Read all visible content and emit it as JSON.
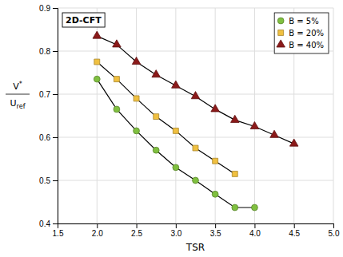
{
  "chart_data": {
    "type": "line",
    "annotations": [
      "2D-CFT"
    ],
    "xlabel": "TSR",
    "ylabel": [
      "V*",
      "Uref"
    ],
    "xlim": [
      1.5,
      5.0
    ],
    "ylim": [
      0.4,
      0.9
    ],
    "xticks": [
      1.5,
      {
        "value": 2.0,
        "label": "2.0"
      },
      2.5,
      {
        "value": 3.0,
        "label": "3.0"
      },
      3.5,
      {
        "value": 4.0,
        "label": "4.0"
      },
      4.5,
      {
        "value": 5.0,
        "label": "5.0"
      }
    ],
    "yticks": [
      0.4,
      0.5,
      0.6,
      0.7,
      0.8,
      0.9
    ],
    "grid": true,
    "legend": "upper right",
    "series": [
      {
        "name": "B = 5%",
        "color": "#80c040",
        "marker": "circle",
        "x": [
          2.0,
          2.25,
          2.5,
          2.75,
          3.0,
          3.25,
          3.5,
          3.75,
          4.0
        ],
        "values": [
          0.735,
          0.665,
          0.615,
          0.57,
          0.53,
          0.5,
          0.468,
          0.437,
          0.437
        ]
      },
      {
        "name": "B = 20%",
        "color": "#f0c040",
        "marker": "square",
        "x": [
          2.0,
          2.25,
          2.5,
          2.75,
          3.0,
          3.25,
          3.5,
          3.75
        ],
        "values": [
          0.775,
          0.735,
          0.69,
          0.648,
          0.615,
          0.575,
          0.545,
          0.515
        ]
      },
      {
        "name": "B = 40%",
        "color": "#8b1a1a",
        "marker": "triangle",
        "x": [
          2.0,
          2.25,
          2.5,
          2.75,
          3.0,
          3.25,
          3.5,
          3.75,
          4.0,
          4.25,
          4.5
        ],
        "values": [
          0.835,
          0.815,
          0.775,
          0.745,
          0.72,
          0.695,
          0.665,
          0.64,
          0.625,
          0.605,
          0.585
        ]
      }
    ]
  }
}
